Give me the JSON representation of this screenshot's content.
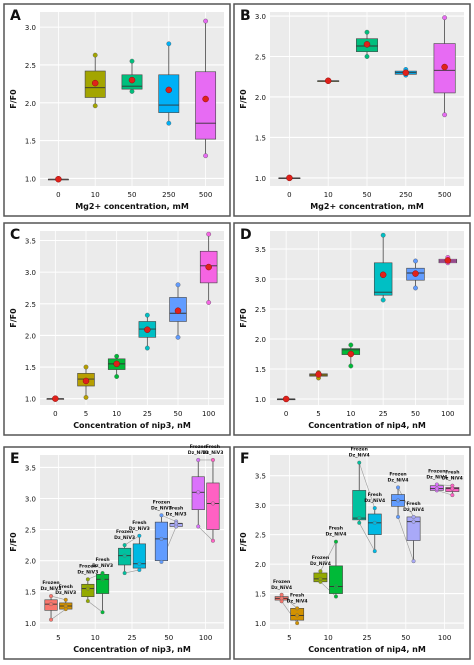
{
  "chart_data": [
    {
      "id": "A",
      "type": "box",
      "panel_label": "A",
      "ylabel": "F/F0",
      "xlabel": "Mg2+ concentration, mM",
      "categories": [
        "0",
        "10",
        "50",
        "250",
        "500"
      ],
      "yticks": [
        "1.0",
        "1.5",
        "2.0",
        "2.5",
        "3.0"
      ],
      "ylim": [
        0.9,
        3.2
      ],
      "boxes": [
        {
          "min": 0.99,
          "q1": 0.99,
          "median": 0.99,
          "q3": 0.99,
          "max": 0.99,
          "mean": 0.99,
          "color": "#f4a39a"
        },
        {
          "min": 1.96,
          "q1": 2.07,
          "median": 2.2,
          "q3": 2.42,
          "max": 2.63,
          "mean": 2.26,
          "color": "#a3a500"
        },
        {
          "min": 2.15,
          "q1": 2.18,
          "median": 2.22,
          "q3": 2.37,
          "max": 2.55,
          "mean": 2.3,
          "color": "#00bf7d"
        },
        {
          "min": 1.73,
          "q1": 1.87,
          "median": 1.97,
          "q3": 2.37,
          "max": 2.78,
          "mean": 2.17,
          "color": "#00b0f6"
        },
        {
          "min": 1.3,
          "q1": 1.52,
          "median": 1.73,
          "q3": 2.41,
          "max": 3.08,
          "mean": 2.05,
          "color": "#e76bf3"
        }
      ]
    },
    {
      "id": "B",
      "type": "box",
      "panel_label": "B",
      "ylabel": "F/F0",
      "xlabel": "Mg2+ concentration, mM",
      "categories": [
        "0",
        "10",
        "50",
        "250",
        "500"
      ],
      "yticks": [
        "1.0",
        "1.5",
        "2.0",
        "2.5",
        "3.0"
      ],
      "ylim": [
        0.9,
        3.05
      ],
      "boxes": [
        {
          "min": 1.0,
          "q1": 1.0,
          "median": 1.0,
          "q3": 1.0,
          "max": 1.0,
          "mean": 1.0,
          "color": "#f4a39a"
        },
        {
          "min": 2.2,
          "q1": 2.2,
          "median": 2.2,
          "q3": 2.2,
          "max": 2.2,
          "mean": 2.2,
          "color": "#a3a500"
        },
        {
          "min": 2.5,
          "q1": 2.56,
          "median": 2.63,
          "q3": 2.72,
          "max": 2.8,
          "mean": 2.65,
          "color": "#00bf7d"
        },
        {
          "min": 2.27,
          "q1": 2.28,
          "median": 2.3,
          "q3": 2.32,
          "max": 2.34,
          "mean": 2.3,
          "color": "#00b0f6"
        },
        {
          "min": 1.78,
          "q1": 2.05,
          "median": 2.33,
          "q3": 2.66,
          "max": 2.98,
          "mean": 2.37,
          "color": "#e76bf3"
        }
      ]
    },
    {
      "id": "C",
      "type": "box",
      "panel_label": "C",
      "ylabel": "F/F0",
      "xlabel": "Concentration of nip3, nM",
      "categories": [
        "0",
        "5",
        "10",
        "25",
        "50",
        "100"
      ],
      "yticks": [
        "1.0",
        "1.5",
        "2.0",
        "2.5",
        "3.0",
        "3.5"
      ],
      "ylim": [
        0.9,
        3.65
      ],
      "boxes": [
        {
          "min": 1.0,
          "q1": 1.0,
          "median": 1.0,
          "q3": 1.0,
          "max": 1.0,
          "mean": 1.0,
          "color": "#f4a39a"
        },
        {
          "min": 1.02,
          "q1": 1.2,
          "median": 1.31,
          "q3": 1.4,
          "max": 1.5,
          "mean": 1.28,
          "color": "#b79f00"
        },
        {
          "min": 1.35,
          "q1": 1.46,
          "median": 1.55,
          "q3": 1.63,
          "max": 1.67,
          "mean": 1.55,
          "color": "#00ba38"
        },
        {
          "min": 1.8,
          "q1": 1.97,
          "median": 2.1,
          "q3": 2.22,
          "max": 2.32,
          "mean": 2.09,
          "color": "#00bfc4"
        },
        {
          "min": 1.97,
          "q1": 2.22,
          "median": 2.35,
          "q3": 2.6,
          "max": 2.8,
          "mean": 2.39,
          "color": "#619cff"
        },
        {
          "min": 2.52,
          "q1": 2.83,
          "median": 3.1,
          "q3": 3.33,
          "max": 3.6,
          "mean": 3.08,
          "color": "#f564e3"
        }
      ]
    },
    {
      "id": "D",
      "type": "box",
      "panel_label": "D",
      "ylabel": "F/F0",
      "xlabel": "Concentration of nip4, nM",
      "categories": [
        "0",
        "5",
        "10",
        "25",
        "50",
        "100"
      ],
      "yticks": [
        "1.0",
        "1.5",
        "2.0",
        "2.5",
        "3.0",
        "3.5"
      ],
      "ylim": [
        0.9,
        3.8
      ],
      "boxes": [
        {
          "min": 1.0,
          "q1": 1.0,
          "median": 1.0,
          "q3": 1.0,
          "max": 1.0,
          "mean": 1.0,
          "color": "#f4a39a"
        },
        {
          "min": 1.35,
          "q1": 1.38,
          "median": 1.4,
          "q3": 1.42,
          "max": 1.44,
          "mean": 1.41,
          "color": "#b79f00"
        },
        {
          "min": 1.55,
          "q1": 1.74,
          "median": 1.82,
          "q3": 1.84,
          "max": 1.9,
          "mean": 1.75,
          "color": "#00ba38"
        },
        {
          "min": 2.65,
          "q1": 2.73,
          "median": 2.78,
          "q3": 3.27,
          "max": 3.73,
          "mean": 3.07,
          "color": "#00bfc4"
        },
        {
          "min": 2.85,
          "q1": 2.98,
          "median": 3.1,
          "q3": 3.18,
          "max": 3.3,
          "mean": 3.09,
          "color": "#619cff"
        },
        {
          "min": 3.27,
          "q1": 3.27,
          "median": 3.3,
          "q3": 3.33,
          "max": 3.36,
          "mean": 3.31,
          "color": "#f564e3"
        }
      ]
    },
    {
      "id": "E",
      "type": "box",
      "panel_label": "E",
      "ylabel": "F/F0",
      "xlabel": "Concentration of nip3, nM",
      "categories": [
        "5",
        "10",
        "25",
        "50",
        "100"
      ],
      "yticks": [
        "1.0",
        "1.5",
        "2.0",
        "2.5",
        "3.0",
        "3.5"
      ],
      "ylim": [
        0.9,
        3.7
      ],
      "box_labels": [
        [
          "Frozen",
          "Dz_NiV3"
        ],
        [
          "Fresh",
          "Dz_NiV3"
        ],
        [
          "Frozen",
          "Dz_NiV3"
        ],
        [
          "Fresh",
          "Dz_NiV3"
        ],
        [
          "Frozen",
          "Dz_NiV3"
        ],
        [
          "Fresh",
          "Dz_NiV3"
        ],
        [
          "Frozen",
          "Dz_NiV3"
        ],
        [
          "Fresh",
          "Dz_NiV3"
        ],
        [
          "Frozen",
          "Dz_NiV3"
        ],
        [
          "Fresh",
          "Dz_NiV3"
        ]
      ],
      "boxes": [
        {
          "group": 0,
          "side": 0,
          "min": 1.05,
          "q1": 1.2,
          "median": 1.3,
          "q3": 1.37,
          "max": 1.43,
          "color": "#f8766d"
        },
        {
          "group": 0,
          "side": 1,
          "min": 1.22,
          "q1": 1.22,
          "median": 1.27,
          "q3": 1.32,
          "max": 1.37,
          "color": "#d39200"
        },
        {
          "group": 1,
          "side": 0,
          "min": 1.35,
          "q1": 1.42,
          "median": 1.55,
          "q3": 1.62,
          "max": 1.7,
          "color": "#93aa00"
        },
        {
          "group": 1,
          "side": 1,
          "min": 1.17,
          "q1": 1.47,
          "median": 1.7,
          "q3": 1.78,
          "max": 1.8,
          "color": "#00ba38"
        },
        {
          "group": 2,
          "side": 0,
          "min": 1.8,
          "q1": 1.93,
          "median": 2.08,
          "q3": 2.2,
          "max": 2.25,
          "color": "#00c19f"
        },
        {
          "group": 2,
          "side": 1,
          "min": 1.85,
          "q1": 1.88,
          "median": 1.95,
          "q3": 2.27,
          "max": 2.4,
          "color": "#00b9e3"
        },
        {
          "group": 3,
          "side": 0,
          "min": 1.98,
          "q1": 2.0,
          "median": 2.35,
          "q3": 2.62,
          "max": 2.73,
          "color": "#619cff"
        },
        {
          "group": 3,
          "side": 1,
          "min": 2.55,
          "q1": 2.55,
          "median": 2.6,
          "q3": 2.6,
          "max": 2.63,
          "color": "#a9a9f8"
        },
        {
          "group": 4,
          "side": 0,
          "min": 2.55,
          "q1": 2.82,
          "median": 3.1,
          "q3": 3.35,
          "max": 3.62,
          "color": "#db72fb"
        },
        {
          "group": 4,
          "side": 1,
          "min": 2.32,
          "q1": 2.5,
          "median": 2.92,
          "q3": 3.25,
          "max": 3.62,
          "color": "#ff61c3"
        }
      ]
    },
    {
      "id": "F",
      "type": "box",
      "panel_label": "F",
      "ylabel": "F/F0",
      "xlabel": "Concentration of nip4, nM",
      "categories": [
        "5",
        "10",
        "25",
        "50",
        "100"
      ],
      "yticks": [
        "1.0",
        "1.5",
        "2.0",
        "2.5",
        "3.0",
        "3.5"
      ],
      "ylim": [
        0.9,
        3.85
      ],
      "box_labels": [
        [
          "Frozen",
          "Dz_NiV4"
        ],
        [
          "Fresh",
          "Dz_NiV4"
        ],
        [
          "Frozen",
          "Dz_NiV4"
        ],
        [
          "Fresh",
          "Dz_NiV4"
        ],
        [
          "Frozen",
          "Dz_NiV4"
        ],
        [
          "Fresh",
          "Dz_NiV4"
        ],
        [
          "Frozen",
          "Dz_NiV4"
        ],
        [
          "Fresh",
          "Dz_NiV4"
        ],
        [
          "Frozen",
          "Dz_NiV4"
        ],
        [
          "Fresh",
          "Dz_NiV4"
        ]
      ],
      "boxes": [
        {
          "group": 0,
          "side": 0,
          "min": 1.37,
          "q1": 1.39,
          "median": 1.42,
          "q3": 1.45,
          "max": 1.48,
          "color": "#f8766d"
        },
        {
          "group": 0,
          "side": 1,
          "min": 1.0,
          "q1": 1.05,
          "median": 1.13,
          "q3": 1.25,
          "max": 1.25,
          "color": "#d39200"
        },
        {
          "group": 1,
          "side": 0,
          "min": 1.7,
          "q1": 1.7,
          "median": 1.75,
          "q3": 1.85,
          "max": 1.88,
          "color": "#93aa00"
        },
        {
          "group": 1,
          "side": 1,
          "min": 1.45,
          "q1": 1.5,
          "median": 1.62,
          "q3": 1.97,
          "max": 2.38,
          "color": "#00ba38"
        },
        {
          "group": 2,
          "side": 0,
          "min": 2.7,
          "q1": 2.75,
          "median": 2.78,
          "q3": 3.25,
          "max": 3.72,
          "color": "#00c19f"
        },
        {
          "group": 2,
          "side": 1,
          "min": 2.22,
          "q1": 2.5,
          "median": 2.7,
          "q3": 2.85,
          "max": 2.95,
          "color": "#00b9e3"
        },
        {
          "group": 3,
          "side": 0,
          "min": 2.8,
          "q1": 2.98,
          "median": 3.08,
          "q3": 3.18,
          "max": 3.3,
          "color": "#619cff"
        },
        {
          "group": 3,
          "side": 1,
          "min": 2.05,
          "q1": 2.4,
          "median": 2.72,
          "q3": 2.8,
          "max": 2.8,
          "color": "#a9a9f8"
        },
        {
          "group": 4,
          "side": 0,
          "min": 3.25,
          "q1": 3.25,
          "median": 3.28,
          "q3": 3.33,
          "max": 3.35,
          "color": "#db72fb"
        },
        {
          "group": 4,
          "side": 1,
          "min": 3.17,
          "q1": 3.23,
          "median": 3.28,
          "q3": 3.3,
          "max": 3.33,
          "color": "#ff61c3"
        }
      ]
    }
  ]
}
